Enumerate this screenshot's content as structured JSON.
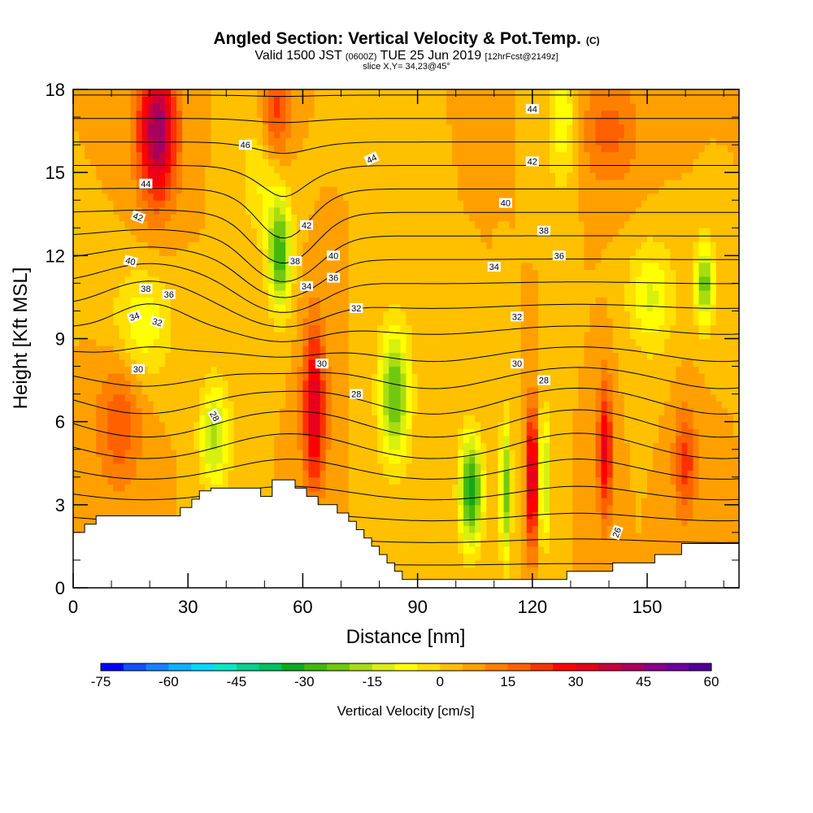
{
  "header": {
    "title": "Angled Section: Vertical Velocity & Pot.Temp.",
    "copyright": "(C)",
    "valid_prefix": "Valid 1500 JST",
    "valid_zulu": "(0600Z)",
    "valid_date": "TUE 25 Jun 2019",
    "forecast": "[12hrFcst@2149z]",
    "slice": "slice X,Y= 34,23@45°"
  },
  "chart_data": {
    "type": "heatmap",
    "xlabel": "Distance [nm]",
    "ylabel": "Height [Kft MSL]",
    "xlim": [
      0,
      174
    ],
    "ylim": [
      0,
      18
    ],
    "x_ticks": [
      0,
      30,
      60,
      90,
      120,
      150
    ],
    "y_ticks": [
      0,
      3,
      6,
      9,
      12,
      15,
      18
    ],
    "terrain": [
      [
        0,
        2.0
      ],
      [
        3,
        2.0
      ],
      [
        3,
        2.3
      ],
      [
        6,
        2.3
      ],
      [
        6,
        2.6
      ],
      [
        28,
        2.6
      ],
      [
        28,
        2.9
      ],
      [
        31,
        2.9
      ],
      [
        31,
        3.2
      ],
      [
        33,
        3.2
      ],
      [
        33,
        3.5
      ],
      [
        36,
        3.5
      ],
      [
        36,
        3.6
      ],
      [
        49,
        3.6
      ],
      [
        49,
        3.3
      ],
      [
        52,
        3.3
      ],
      [
        52,
        3.9
      ],
      [
        58,
        3.9
      ],
      [
        58,
        3.6
      ],
      [
        61,
        3.6
      ],
      [
        61,
        3.3
      ],
      [
        64,
        3.3
      ],
      [
        64,
        3.0
      ],
      [
        69,
        3.0
      ],
      [
        69,
        2.7
      ],
      [
        72,
        2.7
      ],
      [
        72,
        2.4
      ],
      [
        74,
        2.4
      ],
      [
        74,
        2.1
      ],
      [
        76,
        2.1
      ],
      [
        76,
        1.8
      ],
      [
        78,
        1.8
      ],
      [
        78,
        1.5
      ],
      [
        80,
        1.5
      ],
      [
        80,
        1.2
      ],
      [
        82,
        1.2
      ],
      [
        82,
        0.9
      ],
      [
        84,
        0.9
      ],
      [
        84,
        0.6
      ],
      [
        86,
        0.6
      ],
      [
        86,
        0.3
      ],
      [
        129,
        0.3
      ],
      [
        129,
        0.6
      ],
      [
        141,
        0.6
      ],
      [
        141,
        0.9
      ],
      [
        152,
        0.9
      ],
      [
        152,
        1.2
      ],
      [
        159,
        1.2
      ],
      [
        159,
        1.6
      ],
      [
        174,
        1.6
      ]
    ],
    "vertical_velocity_field": {
      "background": 5,
      "features": [
        {
          "x": 22,
          "y": 16.5,
          "sx": 5,
          "sy": 2.5,
          "value": 40
        },
        {
          "x": 53,
          "y": 17.0,
          "sx": 4,
          "sy": 2.0,
          "value": 20
        },
        {
          "x": 63,
          "y": 6.5,
          "sx": 3,
          "sy": 3.0,
          "value": 30
        },
        {
          "x": 18,
          "y": 9.5,
          "sx": 8,
          "sy": 2.0,
          "value": -14
        },
        {
          "x": 37,
          "y": 5.5,
          "sx": 4,
          "sy": 2.0,
          "value": -22
        },
        {
          "x": 54,
          "y": 12.0,
          "sx": 3,
          "sy": 2.0,
          "value": -32
        },
        {
          "x": 50,
          "y": 15.0,
          "sx": 6,
          "sy": 2.5,
          "value": -12
        },
        {
          "x": 84,
          "y": 7.0,
          "sx": 4,
          "sy": 2.5,
          "value": -30
        },
        {
          "x": 104,
          "y": 3.5,
          "sx": 3,
          "sy": 2.0,
          "value": -38
        },
        {
          "x": 113,
          "y": 3.5,
          "sx": 1.5,
          "sy": 2.5,
          "value": -28
        },
        {
          "x": 120,
          "y": 4.0,
          "sx": 1.5,
          "sy": 2.5,
          "value": 36
        },
        {
          "x": 123,
          "y": 4.0,
          "sx": 1.5,
          "sy": 2.5,
          "value": -24
        },
        {
          "x": 139,
          "y": 5.0,
          "sx": 2,
          "sy": 2.5,
          "value": 26
        },
        {
          "x": 151,
          "y": 10.5,
          "sx": 6,
          "sy": 2.0,
          "value": -16
        },
        {
          "x": 165,
          "y": 11.0,
          "sx": 2.5,
          "sy": 1.5,
          "value": -28
        },
        {
          "x": 128,
          "y": 17.0,
          "sx": 4,
          "sy": 2.5,
          "value": -15
        },
        {
          "x": 160,
          "y": 4.5,
          "sx": 3,
          "sy": 2.0,
          "value": 18
        },
        {
          "x": 12,
          "y": 6.0,
          "sx": 6,
          "sy": 2.5,
          "value": 14
        },
        {
          "x": 140,
          "y": 16.5,
          "sx": 8,
          "sy": 2.0,
          "value": 12
        }
      ]
    },
    "potential_temperature_contours": {
      "levels": [
        26,
        27,
        28,
        29,
        30,
        31,
        32,
        33,
        34,
        35,
        36,
        37,
        38,
        39,
        40,
        41,
        42,
        43,
        44,
        45,
        46
      ],
      "labels": [
        {
          "text": "44",
          "x": 19,
          "y": 14.6,
          "angle": 0
        },
        {
          "text": "42",
          "x": 17,
          "y": 13.4,
          "angle": 20
        },
        {
          "text": "40",
          "x": 15,
          "y": 11.8,
          "angle": 15
        },
        {
          "text": "38",
          "x": 19,
          "y": 10.8,
          "angle": 0
        },
        {
          "text": "36",
          "x": 25,
          "y": 10.6,
          "angle": 0
        },
        {
          "text": "34",
          "x": 16,
          "y": 9.8,
          "angle": -20
        },
        {
          "text": "32",
          "x": 22,
          "y": 9.6,
          "angle": 15
        },
        {
          "text": "30",
          "x": 17,
          "y": 7.9,
          "angle": 0
        },
        {
          "text": "28",
          "x": 37,
          "y": 6.2,
          "angle": 60
        },
        {
          "text": "46",
          "x": 45,
          "y": 16.0,
          "angle": 0
        },
        {
          "text": "44",
          "x": 78,
          "y": 15.5,
          "angle": -25
        },
        {
          "text": "42",
          "x": 61,
          "y": 13.1,
          "angle": 0
        },
        {
          "text": "40",
          "x": 68,
          "y": 12.0,
          "angle": 0
        },
        {
          "text": "38",
          "x": 58,
          "y": 11.8,
          "angle": 0
        },
        {
          "text": "36",
          "x": 68,
          "y": 11.2,
          "angle": 0
        },
        {
          "text": "34",
          "x": 61,
          "y": 10.9,
          "angle": 0
        },
        {
          "text": "32",
          "x": 74,
          "y": 10.1,
          "angle": 0
        },
        {
          "text": "30",
          "x": 65,
          "y": 8.1,
          "angle": 0
        },
        {
          "text": "28",
          "x": 74,
          "y": 7.0,
          "angle": 0
        },
        {
          "text": "44",
          "x": 120,
          "y": 17.3,
          "angle": 0
        },
        {
          "text": "42",
          "x": 120,
          "y": 15.4,
          "angle": 0
        },
        {
          "text": "40",
          "x": 113,
          "y": 13.9,
          "angle": 0
        },
        {
          "text": "38",
          "x": 123,
          "y": 12.9,
          "angle": 0
        },
        {
          "text": "36",
          "x": 127,
          "y": 12.0,
          "angle": 0
        },
        {
          "text": "34",
          "x": 110,
          "y": 11.6,
          "angle": 0
        },
        {
          "text": "32",
          "x": 116,
          "y": 9.8,
          "angle": 0
        },
        {
          "text": "30",
          "x": 116,
          "y": 8.1,
          "angle": 0
        },
        {
          "text": "28",
          "x": 123,
          "y": 7.5,
          "angle": 0
        },
        {
          "text": "26",
          "x": 142,
          "y": 2.0,
          "angle": -70
        }
      ]
    },
    "colorbar": {
      "label": "Vertical Velocity [cm/s]",
      "tick_labels": [
        "-75",
        "-60",
        "-45",
        "-30",
        "-15",
        "0",
        "15",
        "30",
        "45",
        "60"
      ],
      "range": [
        -75,
        60
      ],
      "step": 5,
      "colors": [
        "#0000ff",
        "#1050ff",
        "#1880ff",
        "#10b0ff",
        "#00d8ff",
        "#00e8c8",
        "#00d090",
        "#00c060",
        "#10a820",
        "#40b810",
        "#70c810",
        "#a8dc10",
        "#d8f010",
        "#ffff00",
        "#ffe000",
        "#ffc000",
        "#ffa000",
        "#ff8000",
        "#ff6000",
        "#ff3000",
        "#ff0000",
        "#e8001c",
        "#c8003c",
        "#a8005c",
        "#880088",
        "#6c009c",
        "#500090"
      ]
    }
  }
}
